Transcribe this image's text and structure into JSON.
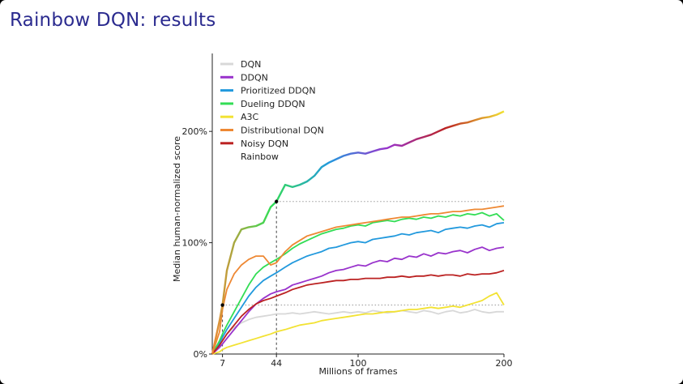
{
  "slide": {
    "title": "Rainbow DQN: results"
  },
  "chart_data": {
    "type": "line",
    "title": "",
    "xlabel": "Millions of frames",
    "ylabel": "Median human-normalized score",
    "xlim": [
      0,
      200
    ],
    "ylim": [
      0,
      270
    ],
    "xticks": [
      7,
      44,
      100,
      200
    ],
    "xtick_labels": [
      "7",
      "44",
      "100",
      "200"
    ],
    "yticks": [
      0,
      100,
      200
    ],
    "ytick_labels": [
      "0%",
      "100%",
      "200%"
    ],
    "legend_position": "top-left",
    "reference_lines": [
      {
        "from_x": 7,
        "y": 44,
        "style": "dotted"
      },
      {
        "from_x": 44,
        "y": 137,
        "style": "dotted"
      }
    ],
    "markers": [
      {
        "x": 7,
        "y": 44,
        "label": ""
      },
      {
        "x": 44,
        "y": 137,
        "label": ""
      }
    ],
    "x": [
      0,
      5,
      7,
      10,
      15,
      20,
      25,
      30,
      35,
      40,
      44,
      50,
      55,
      60,
      65,
      70,
      75,
      80,
      85,
      90,
      95,
      100,
      105,
      110,
      115,
      120,
      125,
      130,
      135,
      140,
      145,
      150,
      155,
      160,
      165,
      170,
      175,
      180,
      185,
      190,
      195,
      200
    ],
    "series": [
      {
        "name": "DQN",
        "color": "#d8d8d8",
        "values": [
          0,
          8,
          12,
          18,
          24,
          28,
          31,
          33,
          34,
          35,
          36,
          36,
          37,
          36,
          37,
          38,
          37,
          36,
          37,
          38,
          37,
          38,
          37,
          39,
          38,
          37,
          38,
          39,
          38,
          37,
          39,
          38,
          36,
          38,
          39,
          37,
          38,
          40,
          38,
          37,
          38,
          38
        ]
      },
      {
        "name": "DDQN",
        "color": "#9933cc",
        "values": [
          0,
          6,
          9,
          14,
          22,
          30,
          38,
          45,
          50,
          54,
          56,
          58,
          62,
          64,
          66,
          68,
          70,
          73,
          75,
          76,
          78,
          80,
          79,
          82,
          84,
          83,
          86,
          85,
          88,
          87,
          90,
          88,
          91,
          90,
          92,
          93,
          91,
          94,
          96,
          93,
          95,
          96
        ]
      },
      {
        "name": "Prioritized DDQN",
        "color": "#2299dd",
        "values": [
          0,
          10,
          15,
          22,
          32,
          42,
          52,
          60,
          66,
          70,
          73,
          78,
          82,
          85,
          88,
          90,
          92,
          95,
          96,
          98,
          100,
          101,
          100,
          103,
          104,
          105,
          106,
          108,
          107,
          109,
          110,
          111,
          109,
          112,
          113,
          114,
          113,
          115,
          116,
          114,
          117,
          118
        ]
      },
      {
        "name": "Dueling DDQN",
        "color": "#33dd55",
        "values": [
          0,
          12,
          18,
          26,
          38,
          50,
          62,
          72,
          78,
          82,
          85,
          90,
          95,
          99,
          102,
          105,
          108,
          110,
          112,
          113,
          115,
          116,
          115,
          118,
          119,
          120,
          119,
          121,
          122,
          121,
          123,
          122,
          124,
          123,
          125,
          124,
          126,
          125,
          127,
          124,
          126,
          120
        ]
      },
      {
        "name": "A3C",
        "color": "#f2e233",
        "values": [
          0,
          2,
          4,
          6,
          8,
          10,
          12,
          14,
          16,
          18,
          20,
          22,
          24,
          26,
          27,
          28,
          30,
          31,
          32,
          33,
          34,
          35,
          36,
          36,
          37,
          38,
          38,
          39,
          40,
          40,
          41,
          42,
          41,
          42,
          43,
          42,
          44,
          46,
          48,
          52,
          55,
          44
        ]
      },
      {
        "name": "Distributional DQN",
        "color": "#ee8833",
        "values": [
          0,
          20,
          40,
          58,
          72,
          80,
          85,
          88,
          88,
          80,
          82,
          92,
          98,
          102,
          106,
          108,
          110,
          112,
          114,
          115,
          116,
          117,
          118,
          119,
          120,
          121,
          122,
          123,
          123,
          124,
          125,
          126,
          126,
          127,
          128,
          128,
          129,
          130,
          130,
          131,
          132,
          133
        ]
      },
      {
        "name": "Noisy DQN",
        "color": "#bb2222",
        "values": [
          0,
          8,
          12,
          18,
          26,
          34,
          40,
          45,
          48,
          50,
          52,
          55,
          58,
          60,
          62,
          63,
          64,
          65,
          66,
          66,
          67,
          67,
          68,
          68,
          68,
          69,
          69,
          70,
          69,
          70,
          70,
          71,
          70,
          71,
          71,
          70,
          72,
          71,
          72,
          72,
          73,
          75
        ]
      },
      {
        "name": "Rainbow",
        "color": "#663355",
        "rainbow": true,
        "values": [
          0,
          30,
          44,
          75,
          100,
          112,
          114,
          115,
          118,
          132,
          137,
          152,
          150,
          152,
          155,
          160,
          168,
          172,
          175,
          178,
          180,
          181,
          180,
          182,
          184,
          185,
          188,
          187,
          190,
          193,
          195,
          197,
          200,
          203,
          205,
          207,
          208,
          210,
          212,
          213,
          215,
          218
        ]
      }
    ]
  }
}
